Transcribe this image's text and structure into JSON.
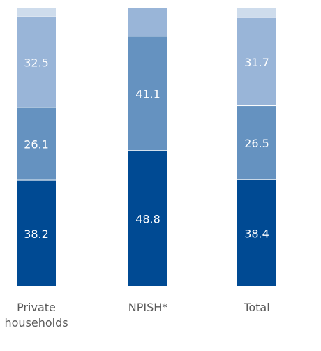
{
  "chart_data": {
    "type": "bar",
    "stacked": true,
    "categories": [
      "Private\nhouseholds",
      "NPISH*",
      "Total"
    ],
    "series": [
      {
        "values": [
          38.2,
          48.8,
          38.4
        ],
        "color": "#004A93",
        "labels": [
          "38.2",
          "48.8",
          "38.4"
        ]
      },
      {
        "values": [
          26.1,
          41.1,
          26.5
        ],
        "color": "#6592C0",
        "labels": [
          "26.1",
          "41.1",
          "26.5"
        ]
      },
      {
        "values": [
          32.5,
          10.1,
          31.7
        ],
        "color": "#99B5D8",
        "labels": [
          "32.5",
          "",
          "31.7"
        ]
      },
      {
        "values": [
          3.2,
          0,
          3.4
        ],
        "color": "#CEDCEC",
        "labels": [
          "",
          "",
          ""
        ]
      }
    ],
    "ylim": [
      0,
      100
    ],
    "grid": false,
    "legend": "none"
  }
}
